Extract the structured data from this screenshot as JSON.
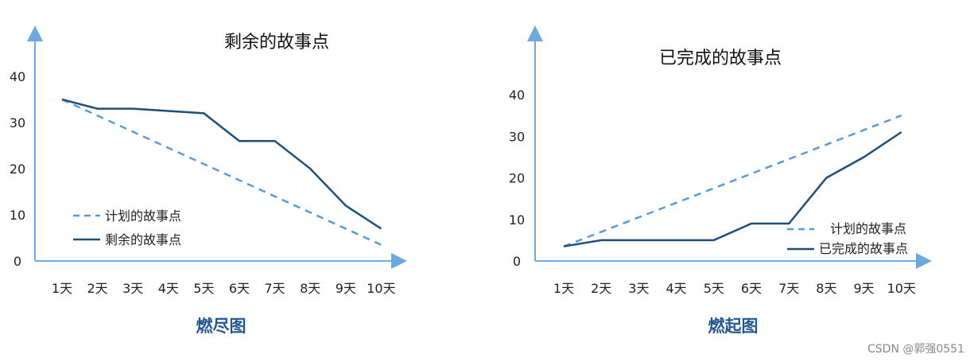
{
  "colors": {
    "planned": "#5b9bd5",
    "actual": "#1f4e79",
    "axis": "#6fa8dc"
  },
  "chart_data": [
    {
      "type": "line",
      "title": "剩余的故事点",
      "caption": "燃尽图",
      "x": [
        "1天",
        "2天",
        "3天",
        "4天",
        "5天",
        "6天",
        "7天",
        "8天",
        "9天",
        "10天"
      ],
      "yticks": [
        "0",
        "10",
        "20",
        "30",
        "40"
      ],
      "ylim": [
        0,
        40
      ],
      "grid": false,
      "legend": "bottom-left",
      "series": [
        {
          "name": "计划的故事点",
          "style": "dashed",
          "values": [
            35,
            31.5,
            28,
            24.5,
            21,
            17.5,
            14,
            10.5,
            7,
            3.5
          ]
        },
        {
          "name": "剩余的故事点",
          "style": "solid",
          "values": [
            35,
            33,
            33,
            32.5,
            32,
            26,
            26,
            20,
            12,
            7
          ]
        }
      ]
    },
    {
      "type": "line",
      "title": "已完成的故事点",
      "caption": "燃起图",
      "x": [
        "1天",
        "2天",
        "3天",
        "4天",
        "5天",
        "6天",
        "7天",
        "8天",
        "9天",
        "10天"
      ],
      "yticks": [
        "0",
        "10",
        "20",
        "30",
        "40"
      ],
      "ylim": [
        0,
        40
      ],
      "grid": false,
      "legend": "bottom-right",
      "series": [
        {
          "name": "计划的故事点",
          "style": "dashed",
          "values": [
            3.5,
            7,
            10.5,
            14,
            17.5,
            21,
            24.5,
            28,
            31.5,
            35
          ]
        },
        {
          "name": "已完成的故事点",
          "style": "solid",
          "values": [
            3.5,
            5,
            5,
            5,
            5,
            9,
            9,
            20,
            25,
            31
          ]
        }
      ]
    }
  ],
  "watermark": "CSDN @郭强0551"
}
